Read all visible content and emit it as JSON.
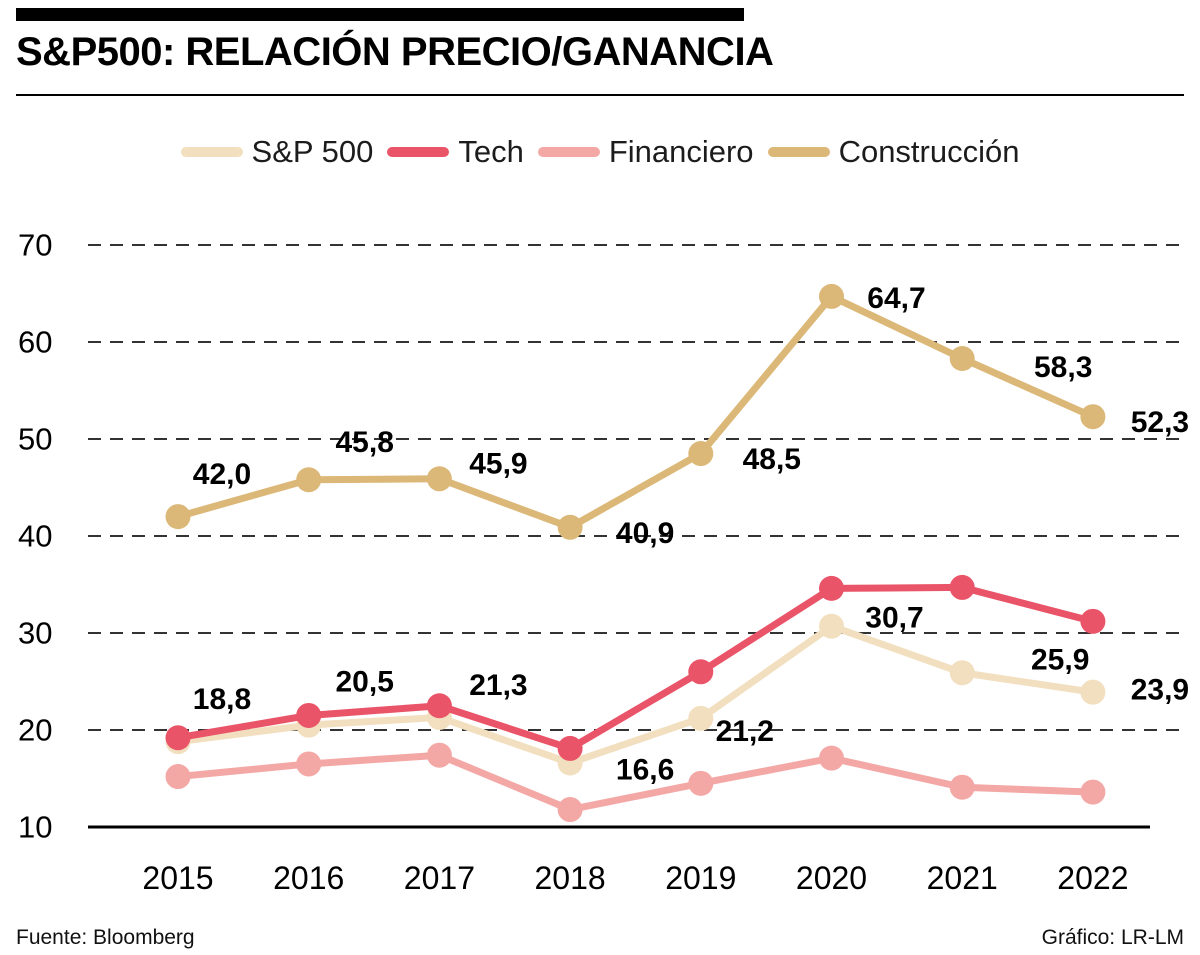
{
  "header": {
    "title": "S&P500: RELACIÓN PRECIO/GANANCIA"
  },
  "footer": {
    "source": "Fuente: Bloomberg",
    "credit": "Gráfico: LR-LM"
  },
  "chart_data": {
    "type": "line",
    "title": "S&P500: RELACIÓN PRECIO/GANANCIA",
    "categories": [
      "2015",
      "2016",
      "2017",
      "2018",
      "2019",
      "2020",
      "2021",
      "2022"
    ],
    "xlabel": "",
    "ylabel": "",
    "ylim": [
      10,
      70
    ],
    "yticks": [
      70,
      60,
      50,
      40,
      30,
      20,
      10
    ],
    "grid": "horizontal dashed, solid baseline at 10",
    "legend_position": "top",
    "decimal_separator": ",",
    "series": [
      {
        "name": "S&P 500",
        "color": "#f2dfbf",
        "values": [
          18.8,
          20.5,
          21.3,
          16.6,
          21.2,
          30.7,
          25.9,
          23.9
        ],
        "labels": [
          "18,8",
          "20,5",
          "21,3",
          "16,6",
          "21,2",
          "30,7",
          "25,9",
          "23,9"
        ],
        "label_offsets": [
          [
            44,
            -42
          ],
          [
            56,
            -43
          ],
          [
            59,
            -32
          ],
          [
            75,
            7
          ],
          [
            44,
            13
          ],
          [
            63,
            -8
          ],
          [
            98,
            -13
          ],
          [
            67,
            -2
          ]
        ]
      },
      {
        "name": "Tech",
        "color": "#ea5468",
        "values": [
          19.2,
          21.5,
          22.5,
          18.1,
          26.0,
          34.6,
          34.7,
          31.2
        ],
        "labels": null
      },
      {
        "name": "Financiero",
        "color": "#f3a8a6",
        "values": [
          15.2,
          16.5,
          17.4,
          11.8,
          14.5,
          17.1,
          14.1,
          13.6
        ],
        "labels": null
      },
      {
        "name": "Construcción",
        "color": "#dcb878",
        "values": [
          42.0,
          45.8,
          45.9,
          40.9,
          48.5,
          64.7,
          58.3,
          52.3
        ],
        "labels": [
          "42,0",
          "45,8",
          "45,9",
          "40,9",
          "48,5",
          "64,7",
          "58,3",
          "52,3"
        ],
        "label_offsets": [
          [
            44,
            -42
          ],
          [
            56,
            -37
          ],
          [
            59,
            -15
          ],
          [
            75,
            6
          ],
          [
            71,
            6
          ],
          [
            65,
            2
          ],
          [
            101,
            9
          ],
          [
            67,
            6
          ]
        ]
      }
    ]
  }
}
